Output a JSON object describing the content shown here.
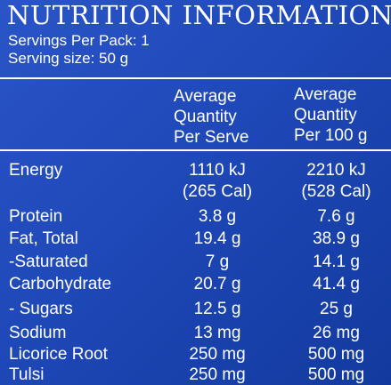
{
  "title": "NUTRITION INFORMATION",
  "servings_per_pack": "Servings Per Pack: 1",
  "serving_size": "Serving size: 50 g",
  "headers": {
    "per_serve": [
      "Average",
      "Quantity",
      "Per Serve"
    ],
    "per_100g": [
      "Average",
      "Quantity",
      "Per 100 g"
    ]
  },
  "rows": [
    {
      "label": "Energy",
      "per_serve": "1110 kJ",
      "per_100g": "2210 kJ"
    },
    {
      "label": "",
      "per_serve": "(265 Cal)",
      "per_100g": "(528 Cal)"
    },
    {
      "label": "Protein",
      "per_serve": "3.8 g",
      "per_100g": "7.6 g"
    },
    {
      "label": "Fat, Total",
      "per_serve": "19.4 g",
      "per_100g": "38.9 g"
    },
    {
      "label": "-Saturated",
      "per_serve": "7 g",
      "per_100g": "14.1 g"
    },
    {
      "label": "Carbohydrate",
      "per_serve": "20.7 g",
      "per_100g": "41.4 g"
    },
    {
      "label": "- Sugars",
      "per_serve": "12.5 g",
      "per_100g": "25 g"
    },
    {
      "label": "Sodium",
      "per_serve": "13 mg",
      "per_100g": "26 mg"
    },
    {
      "label": "Licorice Root",
      "per_serve": "250 mg",
      "per_100g": "500 mg"
    },
    {
      "label": "Tulsi",
      "per_serve": "250 mg",
      "per_100g": "500 mg"
    }
  ]
}
